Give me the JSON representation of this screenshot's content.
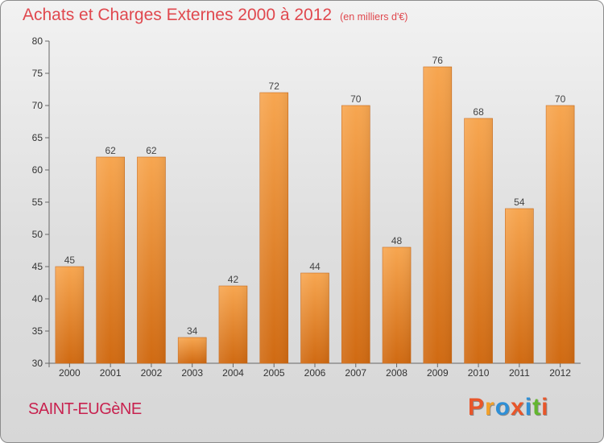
{
  "header": {
    "title": "Achats et Charges Externes 2000 à 2012",
    "subtitle": "(en milliers d'€)"
  },
  "footer": {
    "place": "SAINT-EUGèNE",
    "logo": "Proxiti"
  },
  "colors": {
    "title": "#e0484e",
    "place": "#c8224f",
    "bar_top": "#f7a650",
    "bar_bottom": "#d06a12",
    "logo_letters": [
      "#e8562a",
      "#f2a02a",
      "#2e8fd6",
      "#e8562a",
      "#2e8fd6",
      "#63b62e",
      "#e8562a"
    ]
  },
  "chart_data": {
    "type": "bar",
    "categories": [
      "2000",
      "2001",
      "2002",
      "2003",
      "2004",
      "2005",
      "2006",
      "2007",
      "2008",
      "2009",
      "2010",
      "2011",
      "2012"
    ],
    "values": [
      45,
      62,
      62,
      34,
      42,
      72,
      44,
      70,
      48,
      76,
      68,
      54,
      70
    ],
    "title": "Achats et Charges Externes 2000 à 2012",
    "subtitle": "(en milliers d'€)",
    "xlabel": "",
    "ylabel": "",
    "ylim": [
      30,
      80
    ],
    "yticks": [
      30,
      35,
      40,
      45,
      50,
      55,
      60,
      65,
      70,
      75,
      80
    ],
    "grid": false,
    "data_labels": true
  }
}
